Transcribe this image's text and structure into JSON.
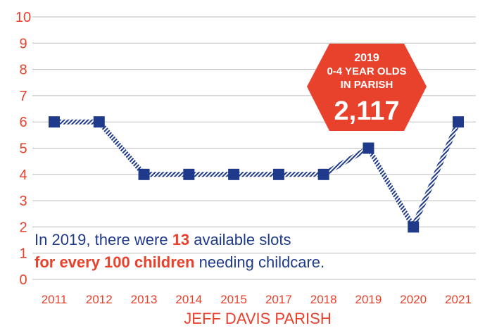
{
  "chart_data": {
    "type": "line",
    "categories": [
      "2011",
      "2012",
      "2013",
      "2014",
      "2015",
      "2017",
      "2018",
      "2019",
      "2020",
      "2021"
    ],
    "series": [
      {
        "values": [
          6,
          6,
          4,
          4,
          4,
          4,
          4,
          5,
          2,
          6
        ]
      }
    ],
    "xlabel": "JEFF DAVIS PARISH",
    "ylabel": "",
    "ylim": [
      0,
      10
    ],
    "yticks": [
      "0",
      "1",
      "2",
      "3",
      "4",
      "5",
      "6",
      "7",
      "8",
      "9",
      "10"
    ],
    "grid": true,
    "colors": {
      "line": "#1f3a8a",
      "marker": "#1f3a8a",
      "text": "#e8412c",
      "badge": "#e8412c",
      "grid": "#bdbdbd"
    }
  },
  "badge": {
    "line1": "2019",
    "line2": "0-4 YEAR OLDS",
    "line3": "IN PARISH",
    "value": "2,117"
  },
  "note": {
    "line1_prefix": "In 2019, there were ",
    "line1_highlight": "13",
    "line1_suffix": " available slots",
    "line2_highlight": "for every 100 children",
    "line2_suffix": " needing childcare."
  }
}
